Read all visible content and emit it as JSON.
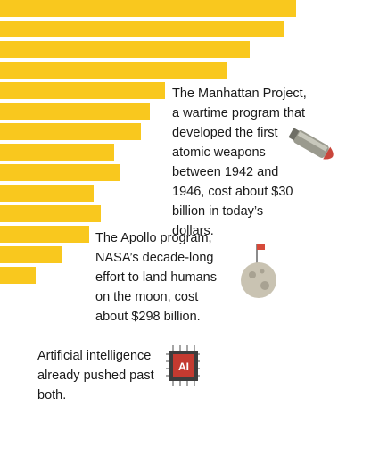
{
  "paragraphs": [
    {
      "lines": [
        "The Manhattan Project,",
        "a wartime program that",
        "developed the first",
        "atomic weapons",
        "between 1942 and",
        "1946, cost about $30",
        "billion in today’s",
        "dollars."
      ]
    },
    {
      "lines": [
        "The Apollo program,",
        "NASA’s decade-long",
        "effort to land humans",
        "on the moon, cost",
        "about $298 billion."
      ]
    },
    {
      "lines": [
        "Artificial intelligence",
        "already pushed past",
        "both."
      ]
    }
  ]
}
